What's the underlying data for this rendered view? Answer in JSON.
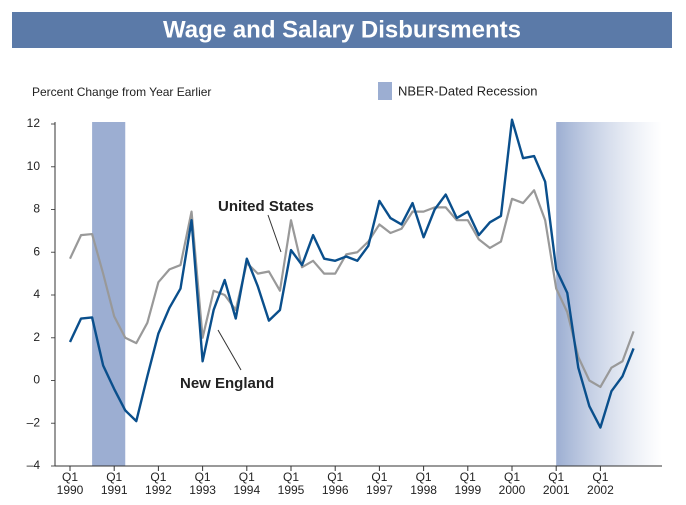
{
  "chart_data": {
    "type": "line",
    "title": "Wage and Salary Disbursments",
    "y_label": "Percent Change from Year Earlier",
    "legend_label": "NBER-Dated Recession",
    "recession_color": "#9caed2",
    "recessions": [
      [
        2,
        5
      ],
      [
        44,
        54
      ]
    ],
    "annotations": [
      "United States",
      "New England"
    ],
    "categories": [
      "Q1\n1990",
      null,
      null,
      null,
      "Q1\n1991",
      null,
      null,
      null,
      "Q1\n1992",
      null,
      null,
      null,
      "Q1\n1993",
      null,
      null,
      null,
      "Q1\n1994",
      null,
      null,
      null,
      "Q1\n1995",
      null,
      null,
      null,
      "Q1\n1996",
      null,
      null,
      null,
      "Q1\n1997",
      null,
      null,
      null,
      "Q1\n1998",
      null,
      null,
      null,
      "Q1\n1999",
      null,
      null,
      null,
      "Q1\n2000",
      null,
      null,
      null,
      "Q1\n2001",
      null,
      null,
      null,
      "Q1\n2002",
      null,
      null,
      null
    ],
    "series": [
      {
        "name": "United States",
        "color": "#999999",
        "values": [
          5.7,
          6.8,
          6.85,
          5.0,
          3.0,
          2.0,
          1.75,
          2.7,
          4.6,
          5.2,
          5.4,
          7.9,
          2.0,
          4.2,
          4.0,
          3.3,
          5.5,
          5.0,
          5.1,
          4.2,
          7.5,
          5.3,
          5.6,
          5.0,
          5.0,
          5.9,
          6.0,
          6.5,
          7.3,
          6.9,
          7.1,
          7.9,
          7.9,
          8.1,
          8.1,
          7.5,
          7.5,
          6.6,
          6.2,
          6.5,
          8.5,
          8.3,
          8.9,
          7.5,
          4.3,
          3.2,
          1.1,
          0.0,
          -0.3,
          0.6,
          0.9,
          2.3
        ]
      },
      {
        "name": "New England",
        "color": "#0a4f8c",
        "values": [
          1.8,
          2.9,
          2.95,
          0.7,
          -0.4,
          -1.4,
          -1.9,
          0.2,
          2.2,
          3.4,
          4.3,
          7.5,
          0.9,
          3.3,
          4.7,
          2.9,
          5.7,
          4.4,
          2.8,
          3.3,
          6.1,
          5.4,
          6.8,
          5.7,
          5.6,
          5.8,
          5.6,
          6.3,
          8.4,
          7.6,
          7.3,
          8.3,
          6.7,
          8.0,
          8.7,
          7.6,
          7.9,
          6.8,
          7.4,
          7.7,
          12.2,
          10.4,
          10.5,
          9.3,
          5.2,
          4.1,
          0.6,
          -1.2,
          -2.2,
          -0.5,
          0.2,
          1.5
        ]
      }
    ],
    "ylim": [
      -4,
      12
    ],
    "yticks": [
      {
        "value": -4,
        "label": "–4"
      },
      {
        "value": -2,
        "label": "–2"
      },
      0,
      2,
      4,
      6,
      8,
      10,
      12
    ]
  }
}
